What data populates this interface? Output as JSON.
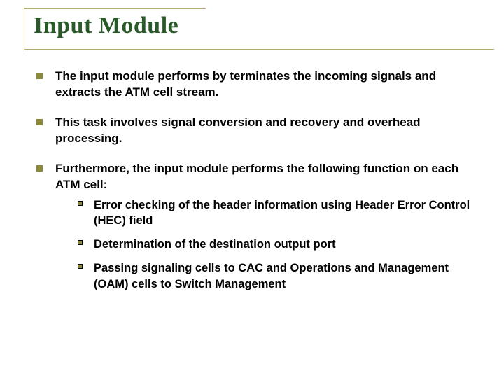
{
  "colors": {
    "title": "#2a5a2a",
    "rule": "#b8a878",
    "bullet_l1": "#8a8a3a",
    "bullet_l2_border": "#000000",
    "text": "#000000",
    "bg": "#ffffff"
  },
  "typography": {
    "title_family": "Times New Roman",
    "title_size_pt": 26,
    "body_family": "Arial",
    "body_size_pt": 13,
    "body_weight": "bold"
  },
  "title": "Input Module",
  "bullets": {
    "b0": "The input module performs by terminates the incoming signals and extracts the ATM cell stream.",
    "b1": "This task involves signal conversion and recovery and overhead processing.",
    "b2": "Furthermore, the input module performs the following function on each ATM cell:",
    "b2_sub": {
      "s0": "Error checking of the header information using Header Error Control (HEC) field",
      "s1": "Determination of the destination output port",
      "s2": "Passing signaling cells to CAC and Operations and Management (OAM) cells to Switch Management"
    }
  }
}
